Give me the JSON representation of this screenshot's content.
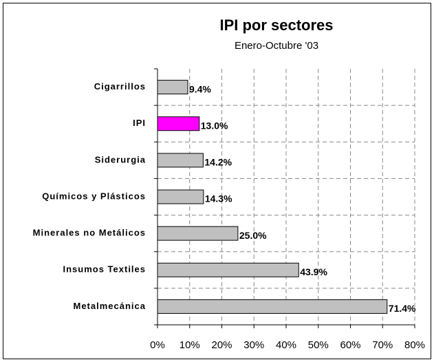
{
  "chart_data": {
    "type": "barh",
    "title": "IPI por sectores",
    "subtitle": "Enero-Octubre '03",
    "categories": [
      "Cigarrillos",
      "IPI",
      "Siderurgia",
      "Químicos y Plásticos",
      "Minerales no Metálicos",
      "Insumos Textiles",
      "Metalmecánica"
    ],
    "values": [
      9.4,
      13.0,
      14.2,
      14.3,
      25.0,
      43.9,
      71.4
    ],
    "value_labels": [
      "9.4%",
      "13.0%",
      "14.2%",
      "14.3%",
      "25.0%",
      "43.9%",
      "71.4%"
    ],
    "colors": [
      "#c0c0c0",
      "#ff00ff",
      "#c0c0c0",
      "#c0c0c0",
      "#c0c0c0",
      "#c0c0c0",
      "#c0c0c0"
    ],
    "xlim": [
      0,
      80
    ],
    "xticks": [
      {
        "value": 0,
        "label": "0%"
      },
      {
        "value": 10,
        "label": "10%"
      },
      {
        "value": 20,
        "label": "20%"
      },
      {
        "value": 30,
        "label": "30%"
      },
      {
        "value": 40,
        "label": "40%"
      },
      {
        "value": 50,
        "label": "50%"
      },
      {
        "value": 60,
        "label": "60%"
      },
      {
        "value": 70,
        "label": "70%"
      },
      {
        "value": 80,
        "label": "80%"
      }
    ],
    "grid": true
  }
}
